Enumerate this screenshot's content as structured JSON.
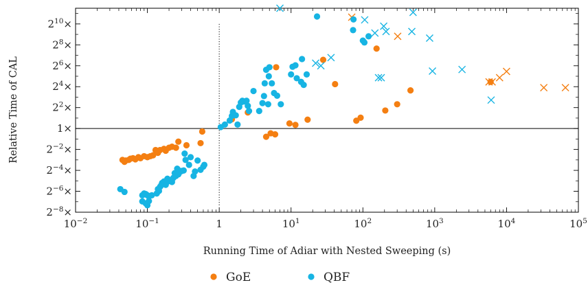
{
  "chart_data": {
    "type": "scatter",
    "x_scale": "log10",
    "y_scale": "log2",
    "xlabel": "Running Time of Adiar with Nested Sweeping (s)",
    "ylabel": "Relative Time of CAL",
    "xlim": [
      0.01,
      100000
    ],
    "ylim": [
      0.00390625,
      2896
    ],
    "x_ticks": [
      {
        "value": 0.01,
        "base": "10",
        "exp": "−2"
      },
      {
        "value": 0.1,
        "base": "10",
        "exp": "−1"
      },
      {
        "value": 1,
        "base": "1",
        "exp": ""
      },
      {
        "value": 10,
        "base": "10",
        "exp": "1"
      },
      {
        "value": 100,
        "base": "10",
        "exp": "2"
      },
      {
        "value": 1000,
        "base": "10",
        "exp": "3"
      },
      {
        "value": 10000,
        "base": "10",
        "exp": "4"
      },
      {
        "value": 100000,
        "base": "10",
        "exp": "5"
      }
    ],
    "y_ticks": [
      {
        "value": 0.00390625,
        "base": "2",
        "exp": "−8",
        "suffix": "×"
      },
      {
        "value": 0.015625,
        "base": "2",
        "exp": "−6",
        "suffix": "×"
      },
      {
        "value": 0.0625,
        "base": "2",
        "exp": "−4",
        "suffix": "×"
      },
      {
        "value": 0.25,
        "base": "2",
        "exp": "−2",
        "suffix": "×"
      },
      {
        "value": 1,
        "base": "1",
        "exp": "",
        "suffix": "×"
      },
      {
        "value": 4,
        "base": "2",
        "exp": "2",
        "suffix": "×"
      },
      {
        "value": 16,
        "base": "2",
        "exp": "4",
        "suffix": "×"
      },
      {
        "value": 64,
        "base": "2",
        "exp": "6",
        "suffix": "×"
      },
      {
        "value": 256,
        "base": "2",
        "exp": "8",
        "suffix": "×"
      },
      {
        "value": 1024,
        "base": "2",
        "exp": "10",
        "suffix": "×"
      }
    ],
    "reference_lines": [
      {
        "orientation": "horizontal",
        "value": 1,
        "style": "solid"
      },
      {
        "orientation": "vertical",
        "value": 1,
        "style": "dotted",
        "y_range": [
          0.0055,
          1024
        ]
      }
    ],
    "series": [
      {
        "name": "GoE",
        "color": "#f47f12",
        "marker": "circle",
        "points": [
          [
            0.045,
            0.125
          ],
          [
            0.048,
            0.11
          ],
          [
            0.05,
            0.12
          ],
          [
            0.055,
            0.125
          ],
          [
            0.058,
            0.135
          ],
          [
            0.063,
            0.14
          ],
          [
            0.068,
            0.13
          ],
          [
            0.075,
            0.15
          ],
          [
            0.08,
            0.14
          ],
          [
            0.09,
            0.16
          ],
          [
            0.1,
            0.15
          ],
          [
            0.11,
            0.16
          ],
          [
            0.12,
            0.17
          ],
          [
            0.13,
            0.24
          ],
          [
            0.14,
            0.2
          ],
          [
            0.15,
            0.24
          ],
          [
            0.17,
            0.26
          ],
          [
            0.18,
            0.23
          ],
          [
            0.2,
            0.28
          ],
          [
            0.22,
            0.3
          ],
          [
            0.25,
            0.28
          ],
          [
            0.27,
            0.42
          ],
          [
            0.35,
            0.33
          ],
          [
            0.55,
            0.38
          ],
          [
            0.58,
            0.82
          ],
          [
            1.5,
            1.85
          ],
          [
            2.5,
            2.9
          ],
          [
            4.5,
            0.58
          ],
          [
            5.2,
            0.73
          ],
          [
            6,
            0.68
          ],
          [
            6.2,
            58
          ],
          [
            9.5,
            1.4
          ],
          [
            11.5,
            1.27
          ],
          [
            17,
            1.8
          ],
          [
            28,
            95
          ],
          [
            41,
            19
          ],
          [
            81,
            1.68
          ],
          [
            93,
            2.05
          ],
          [
            155,
            200
          ],
          [
            205,
            3.3
          ],
          [
            300,
            5
          ],
          [
            460,
            12.5
          ],
          [
            6000,
            22
          ]
        ]
      },
      {
        "name": "GoE timeout",
        "color": "#f47f12",
        "marker": "x",
        "points": [
          [
            70,
            1600
          ],
          [
            305,
            450
          ],
          [
            5700,
            22
          ],
          [
            6300,
            22
          ],
          [
            8000,
            29
          ],
          [
            10000,
            44
          ],
          [
            33000,
            15
          ],
          [
            66000,
            15
          ]
        ]
      },
      {
        "name": "QBF",
        "color": "#17b4e3",
        "marker": "circle",
        "points": [
          [
            0.042,
            0.018
          ],
          [
            0.048,
            0.015
          ],
          [
            0.085,
            0.008
          ],
          [
            0.095,
            0.007
          ],
          [
            0.1,
            0.0062
          ],
          [
            0.105,
            0.0082
          ],
          [
            0.085,
            0.012
          ],
          [
            0.09,
            0.0135
          ],
          [
            0.095,
            0.013
          ],
          [
            0.1,
            0.012
          ],
          [
            0.105,
            0.011
          ],
          [
            0.115,
            0.012
          ],
          [
            0.135,
            0.0135
          ],
          [
            0.14,
            0.018
          ],
          [
            0.145,
            0.016
          ],
          [
            0.15,
            0.021
          ],
          [
            0.155,
            0.023
          ],
          [
            0.16,
            0.027
          ],
          [
            0.165,
            0.026
          ],
          [
            0.17,
            0.03
          ],
          [
            0.18,
            0.024
          ],
          [
            0.185,
            0.028
          ],
          [
            0.19,
            0.036
          ],
          [
            0.2,
            0.031
          ],
          [
            0.21,
            0.033
          ],
          [
            0.22,
            0.029
          ],
          [
            0.23,
            0.038
          ],
          [
            0.24,
            0.052
          ],
          [
            0.25,
            0.043
          ],
          [
            0.26,
            0.07
          ],
          [
            0.27,
            0.048
          ],
          [
            0.29,
            0.06
          ],
          [
            0.3,
            0.06
          ],
          [
            0.32,
            0.062
          ],
          [
            0.34,
            0.125
          ],
          [
            0.33,
            0.19
          ],
          [
            0.38,
            0.09
          ],
          [
            0.4,
            0.15
          ],
          [
            0.44,
            0.043
          ],
          [
            0.46,
            0.058
          ],
          [
            0.5,
            0.12
          ],
          [
            0.55,
            0.065
          ],
          [
            0.6,
            0.08
          ],
          [
            0.62,
            0.09
          ],
          [
            0.28,
            0.055
          ],
          [
            1.05,
            1.1
          ],
          [
            1.2,
            1.3
          ],
          [
            1.4,
            1.7
          ],
          [
            1.5,
            2.3
          ],
          [
            1.55,
            3.0
          ],
          [
            1.7,
            2.4
          ],
          [
            1.8,
            1.3
          ],
          [
            1.9,
            4.2
          ],
          [
            2.0,
            5.6
          ],
          [
            2.1,
            6.3
          ],
          [
            2.2,
            6.0
          ],
          [
            2.4,
            6.3
          ],
          [
            2.5,
            4.5
          ],
          [
            2.6,
            3.2
          ],
          [
            3.0,
            12.0
          ],
          [
            3.6,
            3.2
          ],
          [
            4.0,
            5.4
          ],
          [
            4.2,
            8.6
          ],
          [
            4.3,
            20
          ],
          [
            4.5,
            49
          ],
          [
            4.8,
            5.0
          ],
          [
            4.9,
            32
          ],
          [
            5.0,
            58
          ],
          [
            5.4,
            20
          ],
          [
            5.8,
            10.5
          ],
          [
            6.4,
            8.8
          ],
          [
            7.2,
            5.0
          ],
          [
            10,
            36
          ],
          [
            10.5,
            60
          ],
          [
            11.5,
            66
          ],
          [
            12,
            28
          ],
          [
            13.8,
            22
          ],
          [
            15,
            18
          ],
          [
            14.2,
            100
          ],
          [
            16.5,
            36
          ],
          [
            23,
            1680
          ],
          [
            73,
            680
          ],
          [
            74,
            1380
          ],
          [
            100,
            340
          ],
          [
            105,
            300
          ],
          [
            120,
            450
          ]
        ]
      },
      {
        "name": "QBF timeout",
        "color": "#17b4e3",
        "marker": "x",
        "points": [
          [
            7,
            2896
          ],
          [
            22,
            76
          ],
          [
            26,
            64
          ],
          [
            36,
            110
          ],
          [
            106,
            1340
          ],
          [
            147,
            560
          ],
          [
            165,
            29
          ],
          [
            180,
            29
          ],
          [
            210,
            620
          ],
          [
            195,
            880
          ],
          [
            480,
            620
          ],
          [
            500,
            2200
          ],
          [
            850,
            400
          ],
          [
            930,
            45
          ],
          [
            2400,
            50
          ],
          [
            6100,
            6.6
          ]
        ]
      }
    ],
    "legend": {
      "position": "bottom-center",
      "entries": [
        {
          "label": "GoE",
          "color": "#f47f12"
        },
        {
          "label": "QBF",
          "color": "#17b4e3"
        }
      ]
    }
  }
}
